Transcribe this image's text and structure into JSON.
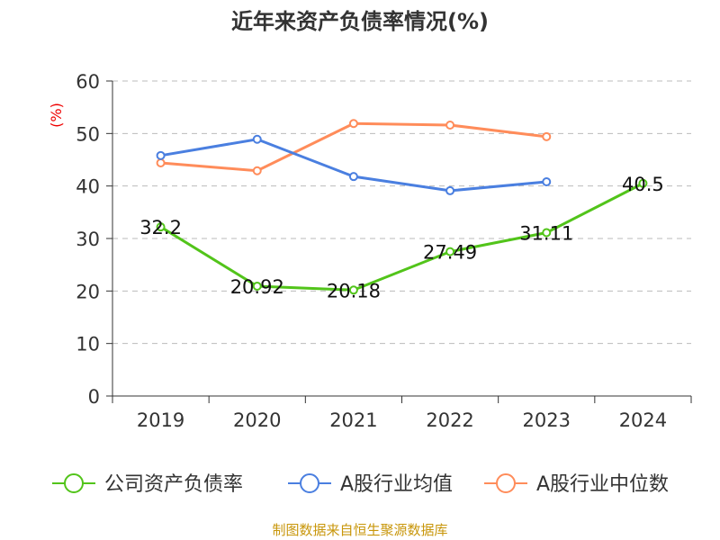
{
  "chart_data": {
    "type": "line",
    "title": "近年来资产负债率情况(%)",
    "ylabel": "(%)",
    "ylim": [
      0,
      60
    ],
    "yticks": [
      0,
      10,
      20,
      30,
      40,
      50,
      60
    ],
    "categories": [
      "2019",
      "2020",
      "2021",
      "2022",
      "2023",
      "2024"
    ],
    "series": [
      {
        "name": "公司资产负债率",
        "color": "#52c41a",
        "values": [
          32.2,
          20.92,
          20.18,
          27.49,
          31.11,
          40.5
        ],
        "labels": [
          "32.2",
          "20.92",
          "20.18",
          "27.49",
          "31.11",
          "40.5"
        ]
      },
      {
        "name": "A股行业均值",
        "color": "#4a7fe0",
        "values": [
          45.8,
          48.9,
          41.8,
          39.1,
          40.8,
          null
        ]
      },
      {
        "name": "A股行业中位数",
        "color": "#ff8c5a",
        "values": [
          44.4,
          42.9,
          51.9,
          51.6,
          49.4,
          null
        ]
      }
    ],
    "legend": "bottom",
    "grid": true
  },
  "footer": "制图数据来自恒生聚源数据库"
}
